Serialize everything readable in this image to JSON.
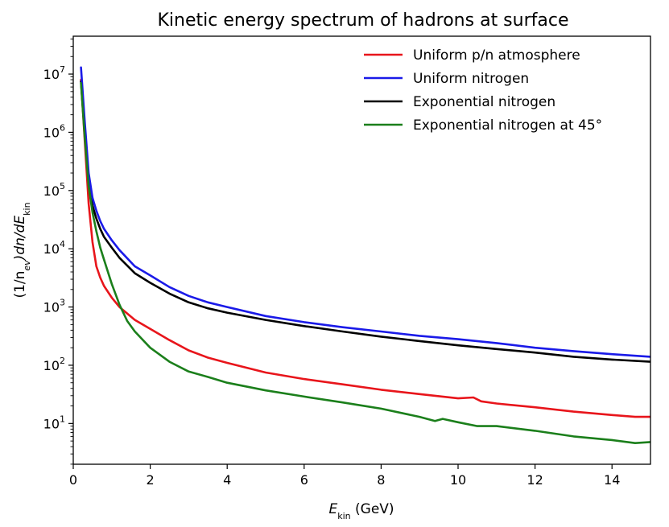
{
  "chart_data": {
    "type": "line",
    "title": "Kinetic energy spectrum of hadrons at surface",
    "xlabel": {
      "main": "E",
      "sub": "kin",
      "unit": " (GeV)"
    },
    "ylabel": {
      "pre": "(1/n",
      "sub_ev": "ev",
      "mid": ")dn/dE",
      "sub_kin": "kin"
    },
    "xlim": [
      0,
      15
    ],
    "ylim_log10": [
      0.3,
      7.65
    ],
    "yscale": "log",
    "x_ticks": [
      0,
      2,
      4,
      6,
      8,
      10,
      12,
      14
    ],
    "x_tick_labels": [
      "0",
      "2",
      "4",
      "6",
      "8",
      "10",
      "12",
      "14"
    ],
    "y_ticks_exp": [
      1,
      2,
      3,
      4,
      5,
      6,
      7
    ],
    "y_tick_labels": [
      {
        "base": "10",
        "exp": "1"
      },
      {
        "base": "10",
        "exp": "2"
      },
      {
        "base": "10",
        "exp": "3"
      },
      {
        "base": "10",
        "exp": "4"
      },
      {
        "base": "10",
        "exp": "5"
      },
      {
        "base": "10",
        "exp": "6"
      },
      {
        "base": "10",
        "exp": "7"
      }
    ],
    "legend_position": "top-right",
    "series": [
      {
        "name": "Uniform p/n atmosphere",
        "color": "#e8151b",
        "x": [
          0.2,
          0.3,
          0.4,
          0.5,
          0.6,
          0.7,
          0.8,
          1.0,
          1.2,
          1.6,
          2.0,
          2.5,
          3.0,
          3.5,
          4.0,
          5.0,
          6.0,
          7.0,
          8.0,
          9.0,
          10.0,
          10.4,
          10.6,
          11.0,
          12.0,
          13.0,
          14.0,
          14.6,
          15.0
        ],
        "values": [
          8000000,
          700000,
          60000,
          13000,
          5000,
          3200,
          2300,
          1450,
          1000,
          600,
          420,
          270,
          180,
          135,
          110,
          75,
          58,
          47,
          38,
          32,
          27,
          28,
          24,
          22,
          19,
          16,
          14,
          13,
          13
        ]
      },
      {
        "name": "Uniform nitrogen",
        "color": "#1a1ae8",
        "x": [
          0.2,
          0.3,
          0.4,
          0.5,
          0.6,
          0.7,
          0.8,
          1.0,
          1.2,
          1.6,
          2.0,
          2.5,
          3.0,
          3.5,
          4.0,
          5.0,
          6.0,
          7.0,
          8.0,
          9.0,
          10.0,
          11.0,
          12.0,
          13.0,
          14.0,
          15.0
        ],
        "values": [
          13000000,
          1500000,
          200000,
          75000,
          45000,
          30000,
          22000,
          14000,
          9500,
          5000,
          3500,
          2200,
          1550,
          1200,
          1000,
          700,
          550,
          450,
          380,
          320,
          280,
          240,
          200,
          175,
          155,
          140
        ]
      },
      {
        "name": "Exponential nitrogen",
        "color": "#000000",
        "x": [
          0.2,
          0.3,
          0.4,
          0.5,
          0.6,
          0.7,
          0.8,
          1.0,
          1.2,
          1.6,
          2.0,
          2.5,
          3.0,
          3.5,
          4.0,
          5.0,
          6.0,
          7.0,
          8.0,
          9.0,
          10.0,
          11.0,
          12.0,
          13.0,
          14.0,
          15.0
        ],
        "values": [
          7500000,
          900000,
          150000,
          55000,
          33000,
          22000,
          16000,
          10500,
          7000,
          3800,
          2600,
          1700,
          1200,
          950,
          800,
          600,
          470,
          380,
          310,
          260,
          220,
          190,
          165,
          140,
          125,
          115
        ]
      },
      {
        "name": "Exponential nitrogen at 45°",
        "color": "#1b7f1b",
        "x": [
          0.2,
          0.3,
          0.4,
          0.5,
          0.6,
          0.7,
          0.8,
          1.0,
          1.2,
          1.4,
          1.6,
          2.0,
          2.5,
          3.0,
          3.5,
          4.0,
          5.0,
          6.0,
          7.0,
          8.0,
          9.0,
          9.4,
          9.6,
          10.0,
          10.5,
          11.0,
          12.0,
          13.0,
          14.0,
          14.6,
          15.0
        ],
        "values": [
          7000000,
          800000,
          120000,
          42000,
          20000,
          10500,
          6500,
          2500,
          1100,
          580,
          380,
          200,
          115,
          78,
          63,
          50,
          37,
          29,
          23,
          18,
          13,
          11,
          12,
          10.5,
          9,
          9,
          7.5,
          6,
          5.2,
          4.6,
          4.8
        ]
      }
    ]
  }
}
